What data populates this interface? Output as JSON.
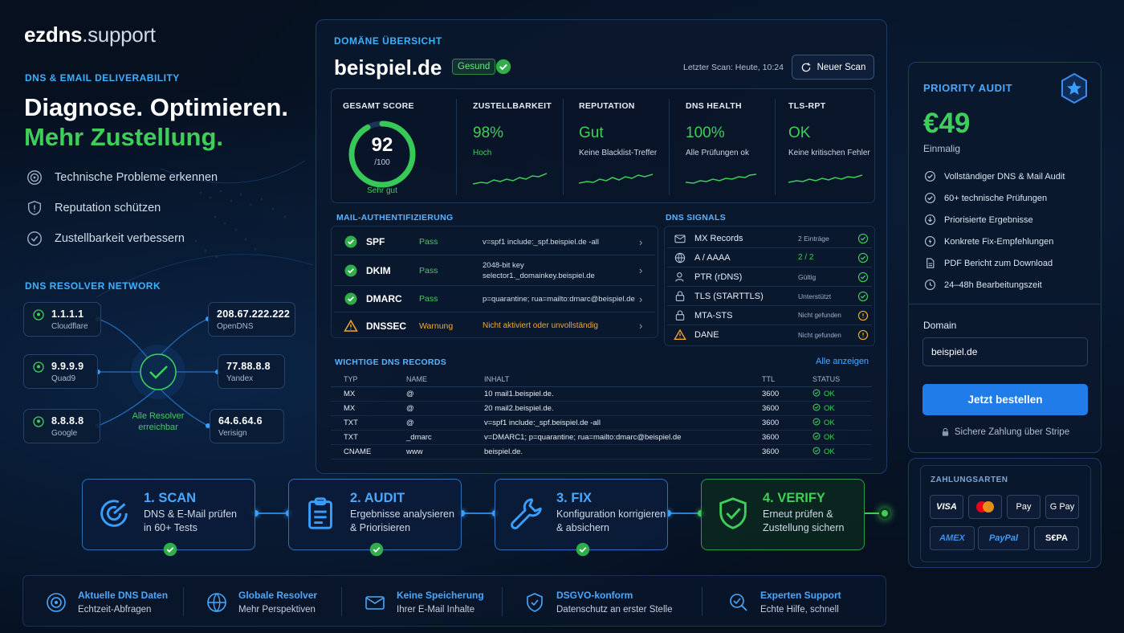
{
  "brand": {
    "name": "ezdns",
    "tld": ".support"
  },
  "hero": {
    "eyebrow": "DNS & EMAIL DELIVERABILITY",
    "line1": "Diagnose. Optimieren.",
    "line2": "Mehr Zustellung.",
    "features": [
      "Technische Probleme erkennen",
      "Reputation schützen",
      "Zustellbarkeit verbessern"
    ]
  },
  "resolvers": {
    "title": "DNS RESOLVER NETWORK",
    "hub_label": "Alle Resolver erreichbar",
    "nodes": [
      {
        "ip": "1.1.1.1",
        "name": "Cloudflare"
      },
      {
        "ip": "9.9.9.9",
        "name": "Quad9"
      },
      {
        "ip": "8.8.8.8",
        "name": "Google"
      },
      {
        "ip": "208.67.222.222",
        "name": "OpenDNS"
      },
      {
        "ip": "77.88.8.8",
        "name": "Yandex"
      },
      {
        "ip": "64.6.64.6",
        "name": "Verisign"
      }
    ]
  },
  "overview": {
    "title": "DOMÄNE ÜBERSICHT",
    "domain": "beispiel.de",
    "status_badge": "Gesund",
    "last_scan": "Letzter Scan: Heute, 10:24",
    "new_scan_label": "Neuer Scan",
    "score": {
      "label": "GESAMT SCORE",
      "value": "92",
      "max": "/100",
      "rating": "Sehr gut",
      "fraction": 0.92
    },
    "metrics": [
      {
        "label": "ZUSTELLBARKEIT",
        "value": "98%",
        "sub": "Hoch"
      },
      {
        "label": "REPUTATION",
        "value": "Gut",
        "sub": "Keine Blacklist-Treffer"
      },
      {
        "label": "DNS HEALTH",
        "value": "100%",
        "sub": "Alle Prüfungen ok"
      },
      {
        "label": "TLS-RPT",
        "value": "OK",
        "sub": "Keine kritischen Fehler"
      }
    ],
    "mail_auth_title": "MAIL-AUTHENTIFIZIERUNG",
    "mail_auth": [
      {
        "name": "SPF",
        "status": "Pass",
        "value": "v=spf1 include:_spf.beispiel.de -all"
      },
      {
        "name": "DKIM",
        "status": "Pass",
        "value": "2048-bit key",
        "value2": "selector1._domainkey.beispiel.de"
      },
      {
        "name": "DMARC",
        "status": "Pass",
        "value": "p=quarantine; rua=mailto:dmarc@beispiel.de"
      },
      {
        "name": "DNSSEC",
        "status": "Warnung",
        "value": "Nicht aktiviert oder unvollständig"
      }
    ],
    "dns_signals_title": "DNS SIGNALS",
    "dns_signals": [
      {
        "name": "MX Records",
        "status": "2 Einträge"
      },
      {
        "name": "A / AAAA",
        "status": "2 / 2"
      },
      {
        "name": "PTR (rDNS)",
        "status": "Gültig"
      },
      {
        "name": "TLS (STARTTLS)",
        "status": "Unterstützt"
      },
      {
        "name": "MTA-STS",
        "status": "Nicht gefunden"
      },
      {
        "name": "DANE",
        "status": "Nicht gefunden"
      }
    ],
    "records": {
      "title": "WICHTIGE DNS RECORDS",
      "show_all": "Alle anzeigen",
      "columns": [
        "TYP",
        "NAME",
        "INHALT",
        "TTL",
        "STATUS"
      ],
      "rows": [
        [
          "MX",
          "@",
          "10 mail1.beispiel.de.",
          "3600",
          "OK"
        ],
        [
          "MX",
          "@",
          "20 mail2.beispiel.de.",
          "3600",
          "OK"
        ],
        [
          "TXT",
          "@",
          "v=spf1 include:_spf.beispiel.de -all",
          "3600",
          "OK"
        ],
        [
          "TXT",
          "_dmarc",
          "v=DMARC1; p=quarantine; rua=mailto:dmarc@beispiel.de",
          "3600",
          "OK"
        ],
        [
          "CNAME",
          "www",
          "beispiel.de.",
          "3600",
          "OK"
        ]
      ]
    }
  },
  "steps": [
    {
      "title": "1. SCAN",
      "line1": "DNS & E-Mail prüfen",
      "line2": "in 60+ Tests"
    },
    {
      "title": "2. AUDIT",
      "line1": "Ergebnisse analysieren",
      "line2": "& Priorisieren"
    },
    {
      "title": "3. FIX",
      "line1": "Konfiguration korrigieren",
      "line2": "& absichern"
    },
    {
      "title": "4. VERIFY",
      "line1": "Erneut prüfen &",
      "line2": "Zustellung sichern"
    }
  ],
  "trust": [
    {
      "title": "Aktuelle DNS Daten",
      "sub": "Echtzeit-Abfragen"
    },
    {
      "title": "Globale Resolver",
      "sub": "Mehr Perspektiven"
    },
    {
      "title": "Keine Speicherung",
      "sub": "Ihrer E-Mail Inhalte"
    },
    {
      "title": "DSGVO-konform",
      "sub": "Datenschutz an erster Stelle"
    },
    {
      "title": "Experten Support",
      "sub": "Echte Hilfe, schnell"
    }
  ],
  "offer": {
    "title": "PRIORITY AUDIT",
    "price": "€49",
    "billing": "Einmalig",
    "features": [
      "Vollständiger DNS & Mail Audit",
      "60+ technische Prüfungen",
      "Priorisierte Ergebnisse",
      "Konkrete Fix-Empfehlungen",
      "PDF Bericht zum Download",
      "24–48h Bearbeitungszeit"
    ],
    "domain_label": "Domain",
    "domain_value": "beispiel.de",
    "order_label": "Jetzt bestellen",
    "secure_note": "Sichere Zahlung über Stripe"
  },
  "payments": {
    "title": "ZAHLUNGSARTEN",
    "methods": [
      "VISA",
      " Pay",
      "G Pay",
      "AMEX",
      "PayPal",
      "S€PA"
    ]
  },
  "colors": {
    "accent": "#4aa8ff",
    "success": "#3ecf5a",
    "warning": "#f0a92a",
    "background": "#06101f"
  }
}
